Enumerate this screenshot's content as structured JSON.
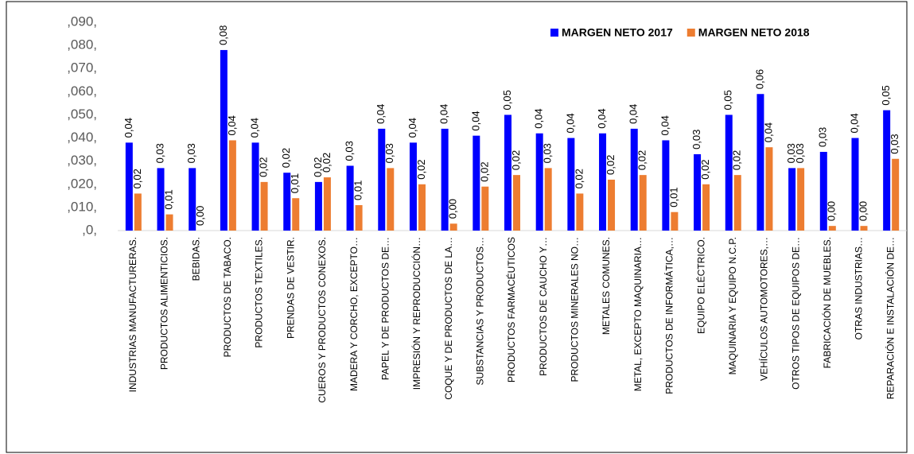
{
  "chart_data": {
    "type": "bar",
    "categories": [
      "INDUSTRIAS MANUFACTURERAS.",
      "PRODUCTOS ALIMENTICIOS.",
      "BEBIDAS.",
      "PRODUCTOS DE TABACO.",
      "PRODUCTOS TEXTILES.",
      "PRENDAS DE VESTIR.",
      "CUEROS Y PRODUCTOS CONEXOS.",
      "MADERA Y CORCHO, EXCEPTO…",
      "PAPEL Y DE PRODUCTOS DE…",
      "IMPRESIÓN Y REPRODUCCIÓN…",
      "COQUE Y DE PRODUCTOS DE LA…",
      "SUBSTANCIAS Y PRODUCTOS…",
      "PRODUCTOS FARMACÉUTICOS",
      "PRODUCTOS DE CAUCHO Y…",
      "PRODUCTOS MINERALES NO…",
      "METALES COMUNES.",
      "METAL, EXCEPTO MAQUINARIA…",
      "PRODUCTOS DE INFORMÁTICA,…",
      "EQUIPO ELÉCTRICO.",
      "MAQUINARIA Y EQUIPO N.C.P.",
      "VEHÍCULOS AUTOMOTORES,…",
      "OTROS TIPOS DE EQUIPOS DE…",
      "FABRICACIÓN DE MUEBLES.",
      "OTRAS INDUSTRIAS…",
      "REPARACIÓN E INSTALACIÓN DE…"
    ],
    "series": [
      {
        "name": "MARGEN NETO 2017",
        "color": "#0000ff",
        "values": [
          0.038,
          0.027,
          0.027,
          0.078,
          0.038,
          0.025,
          0.021,
          0.028,
          0.044,
          0.038,
          0.044,
          0.041,
          0.05,
          0.042,
          0.04,
          0.042,
          0.044,
          0.039,
          0.033,
          0.05,
          0.059,
          0.027,
          0.034,
          0.04,
          0.052
        ],
        "value_labels": [
          "0,04",
          "0,03",
          "0,03",
          "0,08",
          "0,04",
          "0,02",
          "0,02",
          "0,03",
          "0,04",
          "0,04",
          "0,04",
          "0,04",
          "0,05",
          "0,04",
          "0,04",
          "0,04",
          "0,04",
          "0,04",
          "0,03",
          "0,05",
          "0,06",
          "0,03",
          "0,03",
          "0,04",
          "0,05"
        ]
      },
      {
        "name": "MARGEN NETO 2018",
        "color": "#ed7d31",
        "values": [
          0.016,
          0.007,
          0,
          0.039,
          0.021,
          0.014,
          0.023,
          0.011,
          0.027,
          0.02,
          0.003,
          0.019,
          0.024,
          0.027,
          0.016,
          0.022,
          0.024,
          0.008,
          0.02,
          0.024,
          0.036,
          0.027,
          0.002,
          0.002,
          0.031
        ],
        "value_labels": [
          "0,02",
          "0,01",
          "0,00",
          "0,04",
          "0,02",
          "0,01",
          "0,02",
          "0,01",
          "0,03",
          "0,02",
          "0,00",
          "0,02",
          "0,02",
          "0,03",
          "0,02",
          "0,02",
          "0,02",
          "0,01",
          "0,02",
          "0,02",
          "0,04",
          "0,03",
          "0,00",
          "0,00",
          "0,03"
        ]
      }
    ],
    "ylim": [
      0,
      0.09
    ],
    "yticks": [
      {
        "value": 0,
        "label": ",0,"
      },
      {
        "value": 0.01,
        "label": ",010,"
      },
      {
        "value": 0.02,
        "label": ",020,"
      },
      {
        "value": 0.03,
        "label": ",030,"
      },
      {
        "value": 0.04,
        "label": ",040,"
      },
      {
        "value": 0.05,
        "label": ",050,"
      },
      {
        "value": 0.06,
        "label": ",060,"
      },
      {
        "value": 0.07,
        "label": ",070,"
      },
      {
        "value": 0.08,
        "label": ",080,"
      },
      {
        "value": 0.09,
        "label": ",090,"
      }
    ],
    "grid": false,
    "legend": "upper right"
  }
}
